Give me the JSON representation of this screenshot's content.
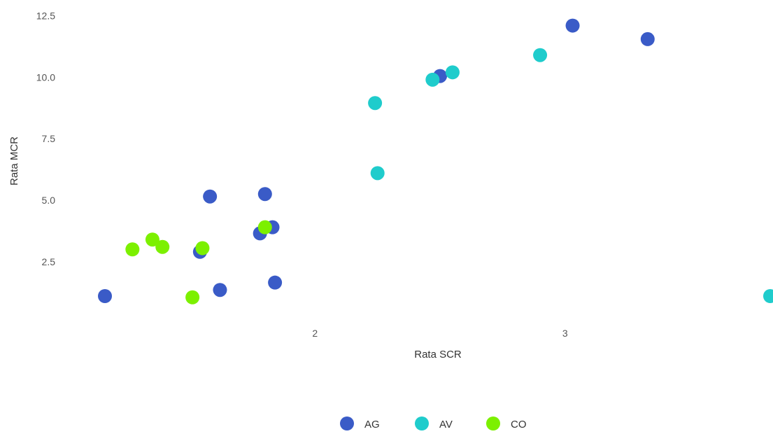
{
  "chart_data": {
    "type": "scatter",
    "title": "",
    "xlabel": "Rata SCR",
    "ylabel": "Rata MCR",
    "xlim": [
      1.15,
      3.82
    ],
    "ylim": [
      0.45,
      12.85
    ],
    "x_ticks": [
      {
        "value": 2,
        "label": "2"
      },
      {
        "value": 3,
        "label": "3"
      }
    ],
    "y_ticks": [
      {
        "value": 2.5,
        "label": "2.5"
      },
      {
        "value": 5.0,
        "label": "5.0"
      },
      {
        "value": 7.5,
        "label": "7.5"
      },
      {
        "value": 10.0,
        "label": "10.0"
      },
      {
        "value": 12.5,
        "label": "12.5"
      }
    ],
    "grid": false,
    "legend_position": "bottom",
    "series": [
      {
        "name": "AG",
        "color": "#3a5bc7",
        "points": [
          {
            "x": 1.16,
            "y": 1.1
          },
          {
            "x": 1.54,
            "y": 2.9
          },
          {
            "x": 1.58,
            "y": 5.15
          },
          {
            "x": 1.62,
            "y": 1.35
          },
          {
            "x": 1.78,
            "y": 3.65
          },
          {
            "x": 1.8,
            "y": 5.25
          },
          {
            "x": 1.83,
            "y": 3.9
          },
          {
            "x": 1.84,
            "y": 1.65
          },
          {
            "x": 2.5,
            "y": 10.05
          },
          {
            "x": 3.03,
            "y": 12.1
          },
          {
            "x": 3.33,
            "y": 11.55
          }
        ]
      },
      {
        "name": "AV",
        "color": "#1fcccc",
        "points": [
          {
            "x": 2.24,
            "y": 8.95
          },
          {
            "x": 2.25,
            "y": 6.1
          },
          {
            "x": 2.47,
            "y": 9.9
          },
          {
            "x": 2.55,
            "y": 10.2
          },
          {
            "x": 2.9,
            "y": 10.9
          },
          {
            "x": 3.82,
            "y": 1.1
          }
        ]
      },
      {
        "name": "CO",
        "color": "#7cf000",
        "points": [
          {
            "x": 1.27,
            "y": 3.0
          },
          {
            "x": 1.35,
            "y": 3.4
          },
          {
            "x": 1.39,
            "y": 3.1
          },
          {
            "x": 1.51,
            "y": 1.05
          },
          {
            "x": 1.55,
            "y": 3.05
          },
          {
            "x": 1.8,
            "y": 3.9
          }
        ]
      }
    ]
  }
}
